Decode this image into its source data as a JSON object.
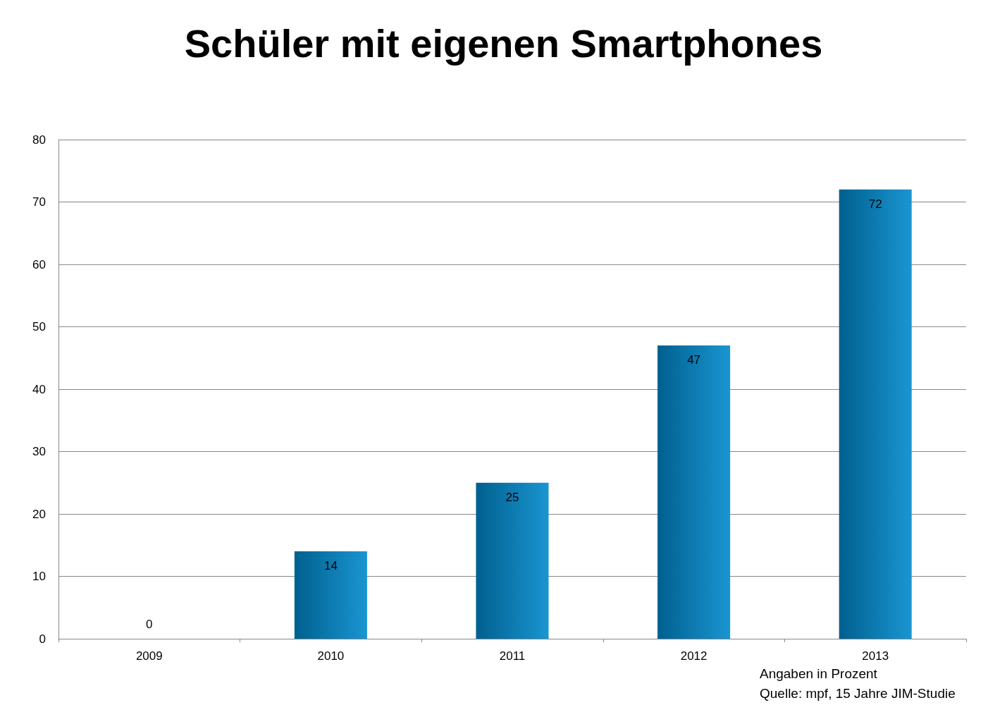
{
  "chart_data": {
    "type": "bar",
    "title": "Schüler mit eigenen Smartphones",
    "categories": [
      "2009",
      "2010",
      "2011",
      "2012",
      "2013"
    ],
    "values": [
      0,
      14,
      25,
      47,
      72
    ],
    "color": "#0089cc",
    "ylim": [
      0,
      80
    ],
    "yticks": [
      0,
      10,
      20,
      30,
      40,
      50,
      60,
      70,
      80
    ],
    "grid": "y",
    "data_labels": true,
    "annotations": [
      "Angaben in Prozent",
      "Quelle: mpf, 15 Jahre JIM-Studie"
    ]
  }
}
